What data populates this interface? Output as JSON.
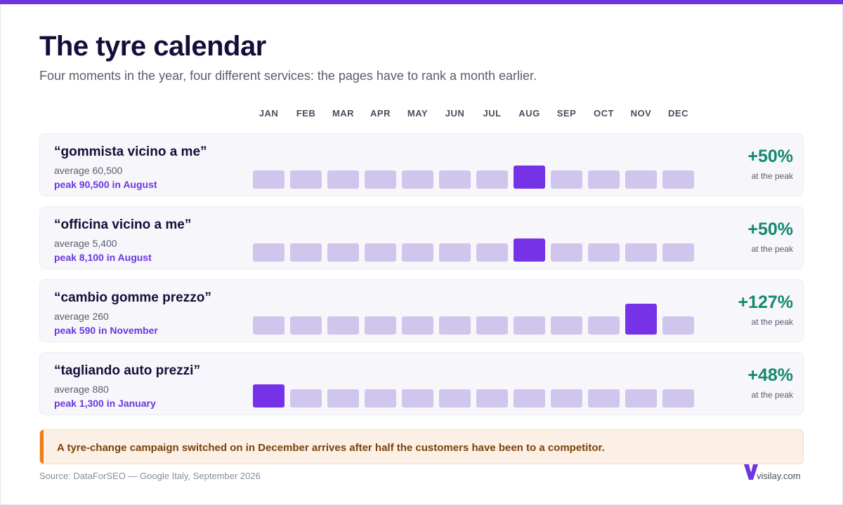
{
  "header": {
    "title": "The tyre calendar",
    "subtitle": "Four moments in the year, four different services: the pages have to rank a month earlier."
  },
  "colors": {
    "accent": "#6d35e0",
    "peak_bar": "#7532e6",
    "bar": "#d0c5ec",
    "pct": "#14886f",
    "callout_accent": "#f07c12"
  },
  "rows": [
    {
      "term": "“gommista vicino a me”",
      "average": "average 60,500",
      "peak": "peak 90,500 in August",
      "pct": "+50%",
      "pct_label": "at the peak"
    },
    {
      "term": "“officina vicino a me”",
      "average": "average 5,400",
      "peak": "peak 8,100 in August",
      "pct": "+50%",
      "pct_label": "at the peak"
    },
    {
      "term": "“cambio gomme prezzo”",
      "average": "average 260",
      "peak": "peak 590 in November",
      "pct": "+127%",
      "pct_label": "at the peak"
    },
    {
      "term": "“tagliando auto prezzi”",
      "average": "average 880",
      "peak": "peak 1,300 in January",
      "pct": "+48%",
      "pct_label": "at the peak"
    }
  ],
  "chart_data": {
    "type": "bar",
    "categories": [
      "JAN",
      "FEB",
      "MAR",
      "APR",
      "MAY",
      "JUN",
      "JUL",
      "AUG",
      "SEP",
      "OCT",
      "NOV",
      "DEC"
    ],
    "series": [
      {
        "name": "“gommista vicino a me”",
        "values": [
          1,
          1,
          1,
          1,
          1,
          1,
          1,
          1.5,
          1,
          1,
          1,
          1
        ],
        "peak_index": 7
      },
      {
        "name": "“officina vicino a me”",
        "values": [
          1,
          1,
          1,
          1,
          1,
          1,
          1,
          1.5,
          1,
          1,
          1,
          1
        ],
        "peak_index": 7
      },
      {
        "name": "“cambio gomme prezzo”",
        "values": [
          1,
          1,
          1,
          1,
          1,
          1,
          1,
          1,
          1,
          1,
          2.27,
          1
        ],
        "peak_index": 10
      },
      {
        "name": "“tagliando auto prezzi”",
        "values": [
          1.48,
          1,
          1,
          1,
          1,
          1,
          1,
          1,
          1,
          1,
          1,
          1
        ],
        "peak_index": 0
      }
    ]
  },
  "callout": {
    "text": "A tyre-change campaign switched on in December arrives after half the customers have been to a competitor."
  },
  "footer": {
    "source": "Source: DataForSEO — Google Italy, September 2026",
    "brand": "visilay.com"
  }
}
